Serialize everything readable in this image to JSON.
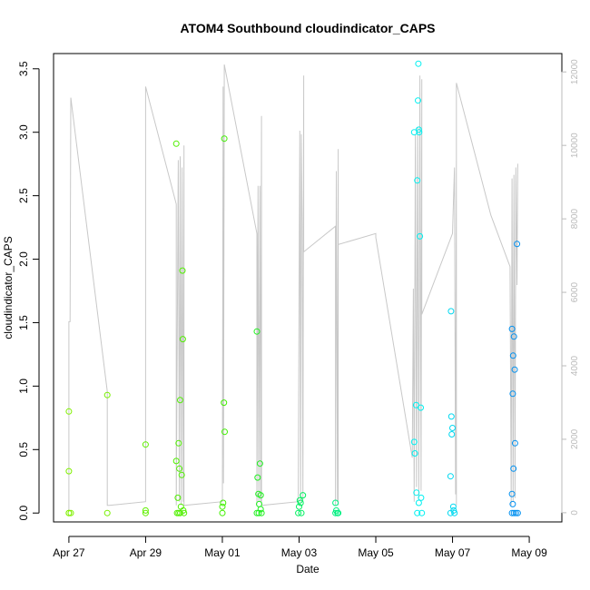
{
  "chart_data": {
    "type": "scatter",
    "title": "ATOM4 Southbound cloudindicator_CAPS",
    "xlabel": "Date",
    "ylabel": "cloudindicator_CAPS",
    "x_axis": {
      "unit": "days since Apr 27",
      "range": [
        -0.4,
        12.85
      ],
      "ticks": [
        {
          "label": "Apr 27",
          "value": 0
        },
        {
          "label": "Apr 29",
          "value": 2
        },
        {
          "label": "May 01",
          "value": 4
        },
        {
          "label": "May 03",
          "value": 6
        },
        {
          "label": "May 05",
          "value": 8
        },
        {
          "label": "May 07",
          "value": 10
        },
        {
          "label": "May 09",
          "value": 12
        }
      ]
    },
    "y_axis": {
      "range": [
        -0.07,
        3.62
      ],
      "ticks": [
        "0.0",
        "0.5",
        "1.0",
        "1.5",
        "2.0",
        "2.5",
        "3.0",
        "3.5"
      ]
    },
    "y2_axis": {
      "range": [
        -250,
        12500
      ],
      "ticks": [
        "0",
        "2000",
        "4000",
        "6000",
        "8000",
        "10000",
        "12000"
      ],
      "color": "#bbbbbb"
    },
    "grid": false,
    "legend": "none",
    "series": [
      {
        "axis": "y2",
        "style": "line",
        "color": "#c8c8c8",
        "points": [
          [
            0.0,
            50
          ],
          [
            0.0,
            5200
          ],
          [
            0.03,
            5200
          ],
          [
            0.05,
            11300
          ],
          [
            1.0,
            3300
          ],
          [
            1.0,
            200
          ],
          [
            1.05,
            200
          ],
          [
            2.0,
            300
          ],
          [
            2.0,
            11600
          ],
          [
            2.8,
            8400
          ],
          [
            2.8,
            200
          ],
          [
            2.85,
            9600
          ],
          [
            2.88,
            300
          ],
          [
            2.9,
            9700
          ],
          [
            2.93,
            200
          ],
          [
            2.95,
            9400
          ],
          [
            2.98,
            300
          ],
          [
            3.0,
            10000
          ],
          [
            3.0,
            200
          ],
          [
            4.0,
            300
          ],
          [
            4.02,
            11600
          ],
          [
            4.03,
            800
          ],
          [
            4.05,
            12200
          ],
          [
            4.9,
            7600
          ],
          [
            4.9,
            200
          ],
          [
            4.93,
            8900
          ],
          [
            4.95,
            300
          ],
          [
            4.98,
            8900
          ],
          [
            5.0,
            300
          ],
          [
            5.02,
            10800
          ],
          [
            5.02,
            200
          ],
          [
            5.98,
            300
          ],
          [
            6.0,
            6000
          ],
          [
            6.02,
            10400
          ],
          [
            6.04,
            300
          ],
          [
            6.06,
            10300
          ],
          [
            6.08,
            7900
          ],
          [
            6.1,
            300
          ],
          [
            6.12,
            11900
          ],
          [
            6.12,
            7100
          ],
          [
            6.95,
            7800
          ],
          [
            6.95,
            200
          ],
          [
            6.97,
            9300
          ],
          [
            7.0,
            300
          ],
          [
            7.02,
            9900
          ],
          [
            7.02,
            200
          ],
          [
            7.02,
            7300
          ],
          [
            8.0,
            7600
          ],
          [
            8.0,
            7500
          ],
          [
            8.95,
            1500
          ],
          [
            8.98,
            6100
          ],
          [
            9.0,
            300
          ],
          [
            9.03,
            10300
          ],
          [
            9.06,
            700
          ],
          [
            9.09,
            10500
          ],
          [
            9.12,
            400
          ],
          [
            9.15,
            11900
          ],
          [
            9.18,
            600
          ],
          [
            9.2,
            11800
          ],
          [
            9.2,
            5400
          ],
          [
            10.0,
            7600
          ],
          [
            10.05,
            9400
          ],
          [
            10.08,
            500
          ],
          [
            10.1,
            9800
          ],
          [
            10.1,
            200
          ],
          [
            10.1,
            11700
          ],
          [
            11.0,
            8100
          ],
          [
            11.5,
            6700
          ],
          [
            11.53,
            200
          ],
          [
            11.55,
            9100
          ],
          [
            11.58,
            300
          ],
          [
            11.6,
            9200
          ],
          [
            11.63,
            400
          ],
          [
            11.65,
            9400
          ],
          [
            11.68,
            6200
          ],
          [
            11.7,
            9500
          ]
        ]
      },
      {
        "axis": "y",
        "style": "points",
        "points": [
          [
            0.0,
            0.0,
            "#80f000"
          ],
          [
            0.0,
            0.0,
            "#80f000"
          ],
          [
            0.0,
            0.8,
            "#80f000"
          ],
          [
            0.0,
            0.33,
            "#80f000"
          ],
          [
            0.05,
            0.0,
            "#80f000"
          ],
          [
            1.0,
            0.93,
            "#78f000"
          ],
          [
            1.0,
            0.0,
            "#78f000"
          ],
          [
            2.0,
            0.54,
            "#60f000"
          ],
          [
            2.0,
            0.02,
            "#60f000"
          ],
          [
            2.0,
            0.0,
            "#60f000"
          ],
          [
            2.8,
            2.91,
            "#50f000"
          ],
          [
            2.8,
            0.41,
            "#50f000"
          ],
          [
            2.82,
            0.0,
            "#50f000"
          ],
          [
            2.84,
            0.12,
            "#50f000"
          ],
          [
            2.86,
            0.55,
            "#50f000"
          ],
          [
            2.88,
            0.35,
            "#50f000"
          ],
          [
            2.9,
            0.89,
            "#50f000"
          ],
          [
            2.92,
            0.05,
            "#50f000"
          ],
          [
            2.94,
            0.3,
            "#50f000"
          ],
          [
            2.96,
            1.91,
            "#50f000"
          ],
          [
            2.97,
            1.37,
            "#50f000"
          ],
          [
            2.98,
            0.02,
            "#50f000"
          ],
          [
            3.0,
            0.0,
            "#50f000"
          ],
          [
            2.86,
            0.0,
            "#50f000"
          ],
          [
            2.9,
            0.0,
            "#50f000"
          ],
          [
            4.0,
            0.05,
            "#40f000"
          ],
          [
            4.02,
            0.08,
            "#40f000"
          ],
          [
            4.04,
            0.87,
            "#40f000"
          ],
          [
            4.05,
            2.95,
            "#40f000"
          ],
          [
            4.06,
            0.64,
            "#40f000"
          ],
          [
            4.0,
            0.0,
            "#40f000"
          ],
          [
            4.9,
            1.43,
            "#20f020"
          ],
          [
            4.92,
            0.28,
            "#20f020"
          ],
          [
            4.94,
            0.15,
            "#20f020"
          ],
          [
            4.96,
            0.07,
            "#20f020"
          ],
          [
            4.98,
            0.39,
            "#20f020"
          ],
          [
            5.0,
            0.14,
            "#20f020"
          ],
          [
            5.0,
            0.03,
            "#20f020"
          ],
          [
            4.9,
            0.0,
            "#20f020"
          ],
          [
            4.95,
            0.0,
            "#20f020"
          ],
          [
            5.02,
            0.0,
            "#20f020"
          ],
          [
            6.0,
            0.05,
            "#00f060"
          ],
          [
            6.02,
            0.1,
            "#00f060"
          ],
          [
            6.04,
            0.08,
            "#00f060"
          ],
          [
            6.1,
            0.14,
            "#00f060"
          ],
          [
            6.06,
            0.0,
            "#00f060"
          ],
          [
            5.98,
            0.0,
            "#00f060"
          ],
          [
            6.95,
            0.08,
            "#00f080"
          ],
          [
            6.97,
            0.02,
            "#00f080"
          ],
          [
            7.0,
            0.0,
            "#00f080"
          ],
          [
            6.95,
            0.0,
            "#00f080"
          ],
          [
            7.02,
            0.0,
            "#00f080"
          ],
          [
            9.0,
            3.0,
            "#00f0f0"
          ],
          [
            9.0,
            0.56,
            "#00f0f0"
          ],
          [
            9.02,
            0.47,
            "#00f0f0"
          ],
          [
            9.05,
            0.85,
            "#00f0f0"
          ],
          [
            9.06,
            0.16,
            "#00f0f0"
          ],
          [
            9.08,
            2.62,
            "#00f0f0"
          ],
          [
            9.1,
            3.25,
            "#00f0f0"
          ],
          [
            9.11,
            3.54,
            "#00f0f0"
          ],
          [
            9.12,
            3.02,
            "#00f0f0"
          ],
          [
            9.13,
            3.0,
            "#00f0f0"
          ],
          [
            9.15,
            2.18,
            "#00f0f0"
          ],
          [
            9.17,
            0.83,
            "#00f0f0"
          ],
          [
            9.18,
            0.12,
            "#00f0f0"
          ],
          [
            9.12,
            0.08,
            "#00f0f0"
          ],
          [
            9.08,
            0.0,
            "#00f0f0"
          ],
          [
            9.2,
            0.0,
            "#00f0f0"
          ],
          [
            9.95,
            0.29,
            "#00d8f0"
          ],
          [
            9.97,
            0.76,
            "#00d8f0"
          ],
          [
            9.98,
            0.62,
            "#00d8f0"
          ],
          [
            10.0,
            0.67,
            "#00d8f0"
          ],
          [
            9.96,
            1.59,
            "#00d8f0"
          ],
          [
            10.02,
            0.05,
            "#00d8f0"
          ],
          [
            10.03,
            0.02,
            "#00d8f0"
          ],
          [
            9.95,
            0.0,
            "#00d8f0"
          ],
          [
            10.05,
            0.0,
            "#00d8f0"
          ],
          [
            11.55,
            1.45,
            "#0090f0"
          ],
          [
            11.58,
            1.24,
            "#0090f0"
          ],
          [
            11.6,
            1.39,
            "#0090f0"
          ],
          [
            11.62,
            1.13,
            "#0090f0"
          ],
          [
            11.57,
            0.94,
            "#0090f0"
          ],
          [
            11.63,
            0.55,
            "#0090f0"
          ],
          [
            11.59,
            0.35,
            "#0090f0"
          ],
          [
            11.55,
            0.15,
            "#0090f0"
          ],
          [
            11.57,
            0.07,
            "#0090f0"
          ],
          [
            11.68,
            2.12,
            "#0090f0"
          ],
          [
            11.55,
            0.0,
            "#0090f0"
          ],
          [
            11.6,
            0.0,
            "#0090f0"
          ],
          [
            11.65,
            0.0,
            "#0090f0"
          ],
          [
            11.7,
            0.0,
            "#0090f0"
          ]
        ]
      }
    ]
  }
}
